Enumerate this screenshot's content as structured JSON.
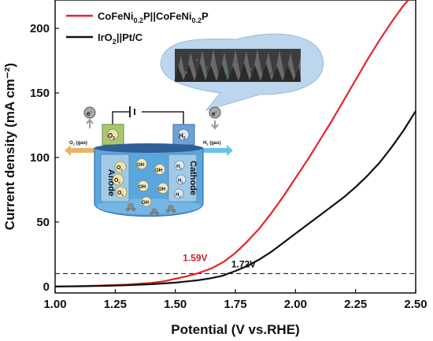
{
  "chart_data": {
    "type": "line",
    "xlabel": "Potential (V vs.RHE)",
    "ylabel": "Current density (mA cm⁻²)",
    "xlim": [
      1.0,
      2.5
    ],
    "ylim": [
      -5,
      222
    ],
    "x_ticks": [
      "1.00",
      "1.25",
      "1.50",
      "1.75",
      "2.00",
      "2.25",
      "2.50"
    ],
    "y_ticks": [
      "0",
      "50",
      "100",
      "150",
      "200"
    ],
    "x_tick_values": [
      1.0,
      1.25,
      1.5,
      1.75,
      2.0,
      2.25,
      2.5
    ],
    "y_tick_values": [
      0,
      50,
      100,
      150,
      200
    ],
    "reference_line_y": 10,
    "series": [
      {
        "name_main": "CoFeNi",
        "name_sub1": "0.2",
        "name_mid": "P||CoFeNi",
        "name_sub2": "0.2",
        "name_end": "P",
        "color": "#e8232a",
        "x": [
          1.0,
          1.1,
          1.2,
          1.3,
          1.4,
          1.45,
          1.5,
          1.55,
          1.59,
          1.65,
          1.7,
          1.75,
          1.8,
          1.85,
          1.9,
          1.95,
          2.0,
          2.05,
          2.1,
          2.15,
          2.2,
          2.25,
          2.3,
          2.35,
          2.4,
          2.45,
          2.48
        ],
        "y": [
          0,
          0.3,
          0.8,
          1.5,
          2.8,
          4,
          6,
          8,
          10,
          14,
          19,
          26,
          35,
          45,
          57,
          70,
          84,
          98,
          113,
          128,
          144,
          160,
          176,
          191,
          205,
          218,
          224
        ]
      },
      {
        "name_main": "IrO",
        "name_sub1": "2",
        "name_mid": "||Pt/C",
        "name_sub2": "",
        "name_end": "",
        "color": "#111111",
        "x": [
          1.0,
          1.1,
          1.2,
          1.3,
          1.4,
          1.5,
          1.55,
          1.6,
          1.65,
          1.7,
          1.72,
          1.75,
          1.8,
          1.85,
          1.9,
          1.95,
          2.0,
          2.05,
          2.1,
          2.15,
          2.2,
          2.25,
          2.3,
          2.35,
          2.4,
          2.45,
          2.5
        ],
        "y": [
          0,
          0.2,
          0.5,
          1,
          1.8,
          3,
          4,
          5,
          6.5,
          8.5,
          10,
          12,
          16,
          21,
          27,
          34,
          41,
          48,
          55,
          62,
          69,
          77,
          86,
          96,
          108,
          121,
          136
        ]
      }
    ],
    "annotations": [
      {
        "text": "1.59V",
        "color": "#c0262c",
        "x": 1.59,
        "y": 10
      },
      {
        "text": "1.72V",
        "color": "#111111",
        "x": 1.72,
        "y": 10
      }
    ]
  },
  "inset": {
    "e_minus": "e",
    "e_minus_sup": "-",
    "o2_gas_left": "O",
    "o2_gas_sub": "2",
    "o2_gas_suffix": " (gas)",
    "h2_gas_left": "H",
    "h2_gas_sub": "2",
    "h2_gas_suffix": " (gas)",
    "o2_box": "O",
    "o2_box_sub": "2",
    "h2_box": "H",
    "h2_box_sub": "2",
    "anode": "Anode",
    "cathode": "Cathode",
    "species_o2": "O",
    "species_o2_sub": "2",
    "species_oh": "OH",
    "species_oh_sup": "-",
    "species_h2": "H",
    "species_h2_sub": "2",
    "colors": {
      "anode_electrode": "#a8c870",
      "cathode_electrode": "#6fa3d8",
      "tank": "#5ba6dc",
      "tank_dark": "#3a6fa8",
      "arrow_o2": "#e7a34a",
      "arrow_h2": "#4cb9e8",
      "bubble": "#ede4b0"
    }
  }
}
